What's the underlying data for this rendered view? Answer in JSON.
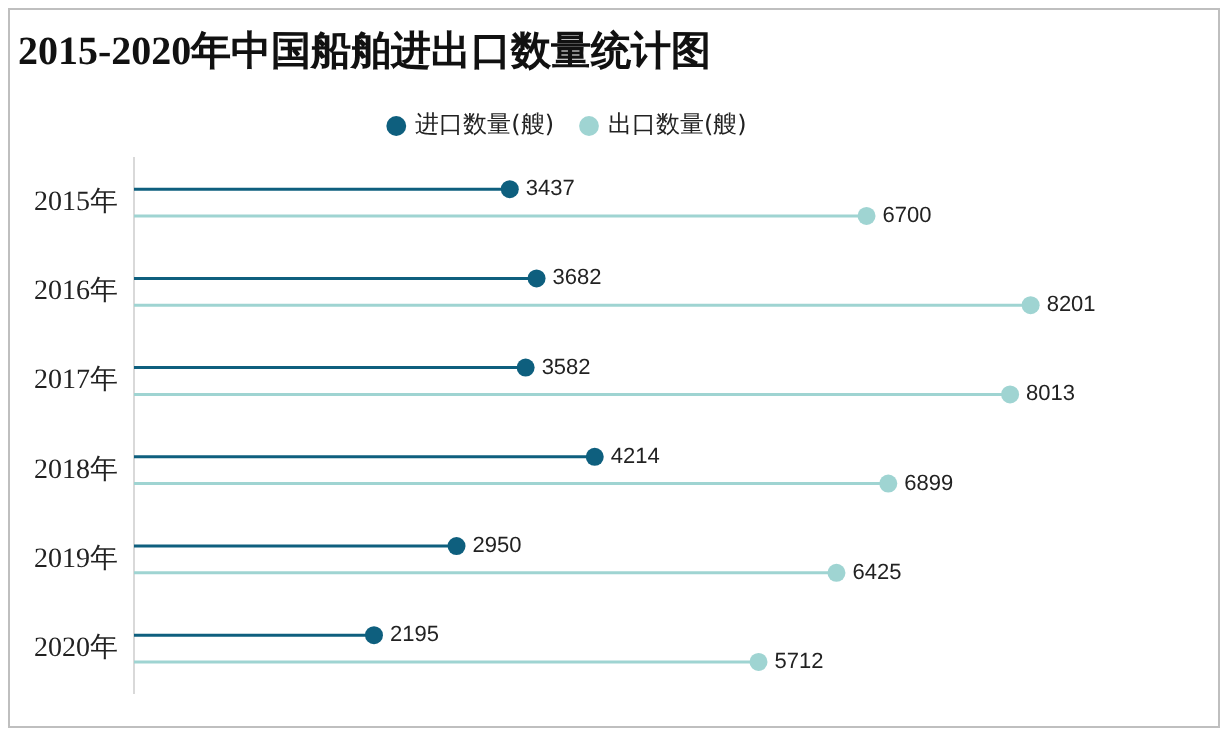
{
  "chart_data": {
    "type": "lollipop",
    "orientation": "horizontal",
    "title": "2015-2020年中国船舶进出口数量统计图",
    "categories": [
      "2015年",
      "2016年",
      "2017年",
      "2018年",
      "2019年",
      "2020年"
    ],
    "series": [
      {
        "name": "进口数量(艘)",
        "color": "#0e5f7e",
        "values": [
          3437,
          3682,
          3582,
          4214,
          2950,
          2195
        ]
      },
      {
        "name": "出口数量(艘)",
        "color": "#9fd4d2",
        "values": [
          6700,
          8201,
          8013,
          6899,
          6425,
          5712
        ]
      }
    ],
    "data_labels": true,
    "grid": false,
    "legend": "top",
    "marker": "circle",
    "tick_labels": "y"
  }
}
